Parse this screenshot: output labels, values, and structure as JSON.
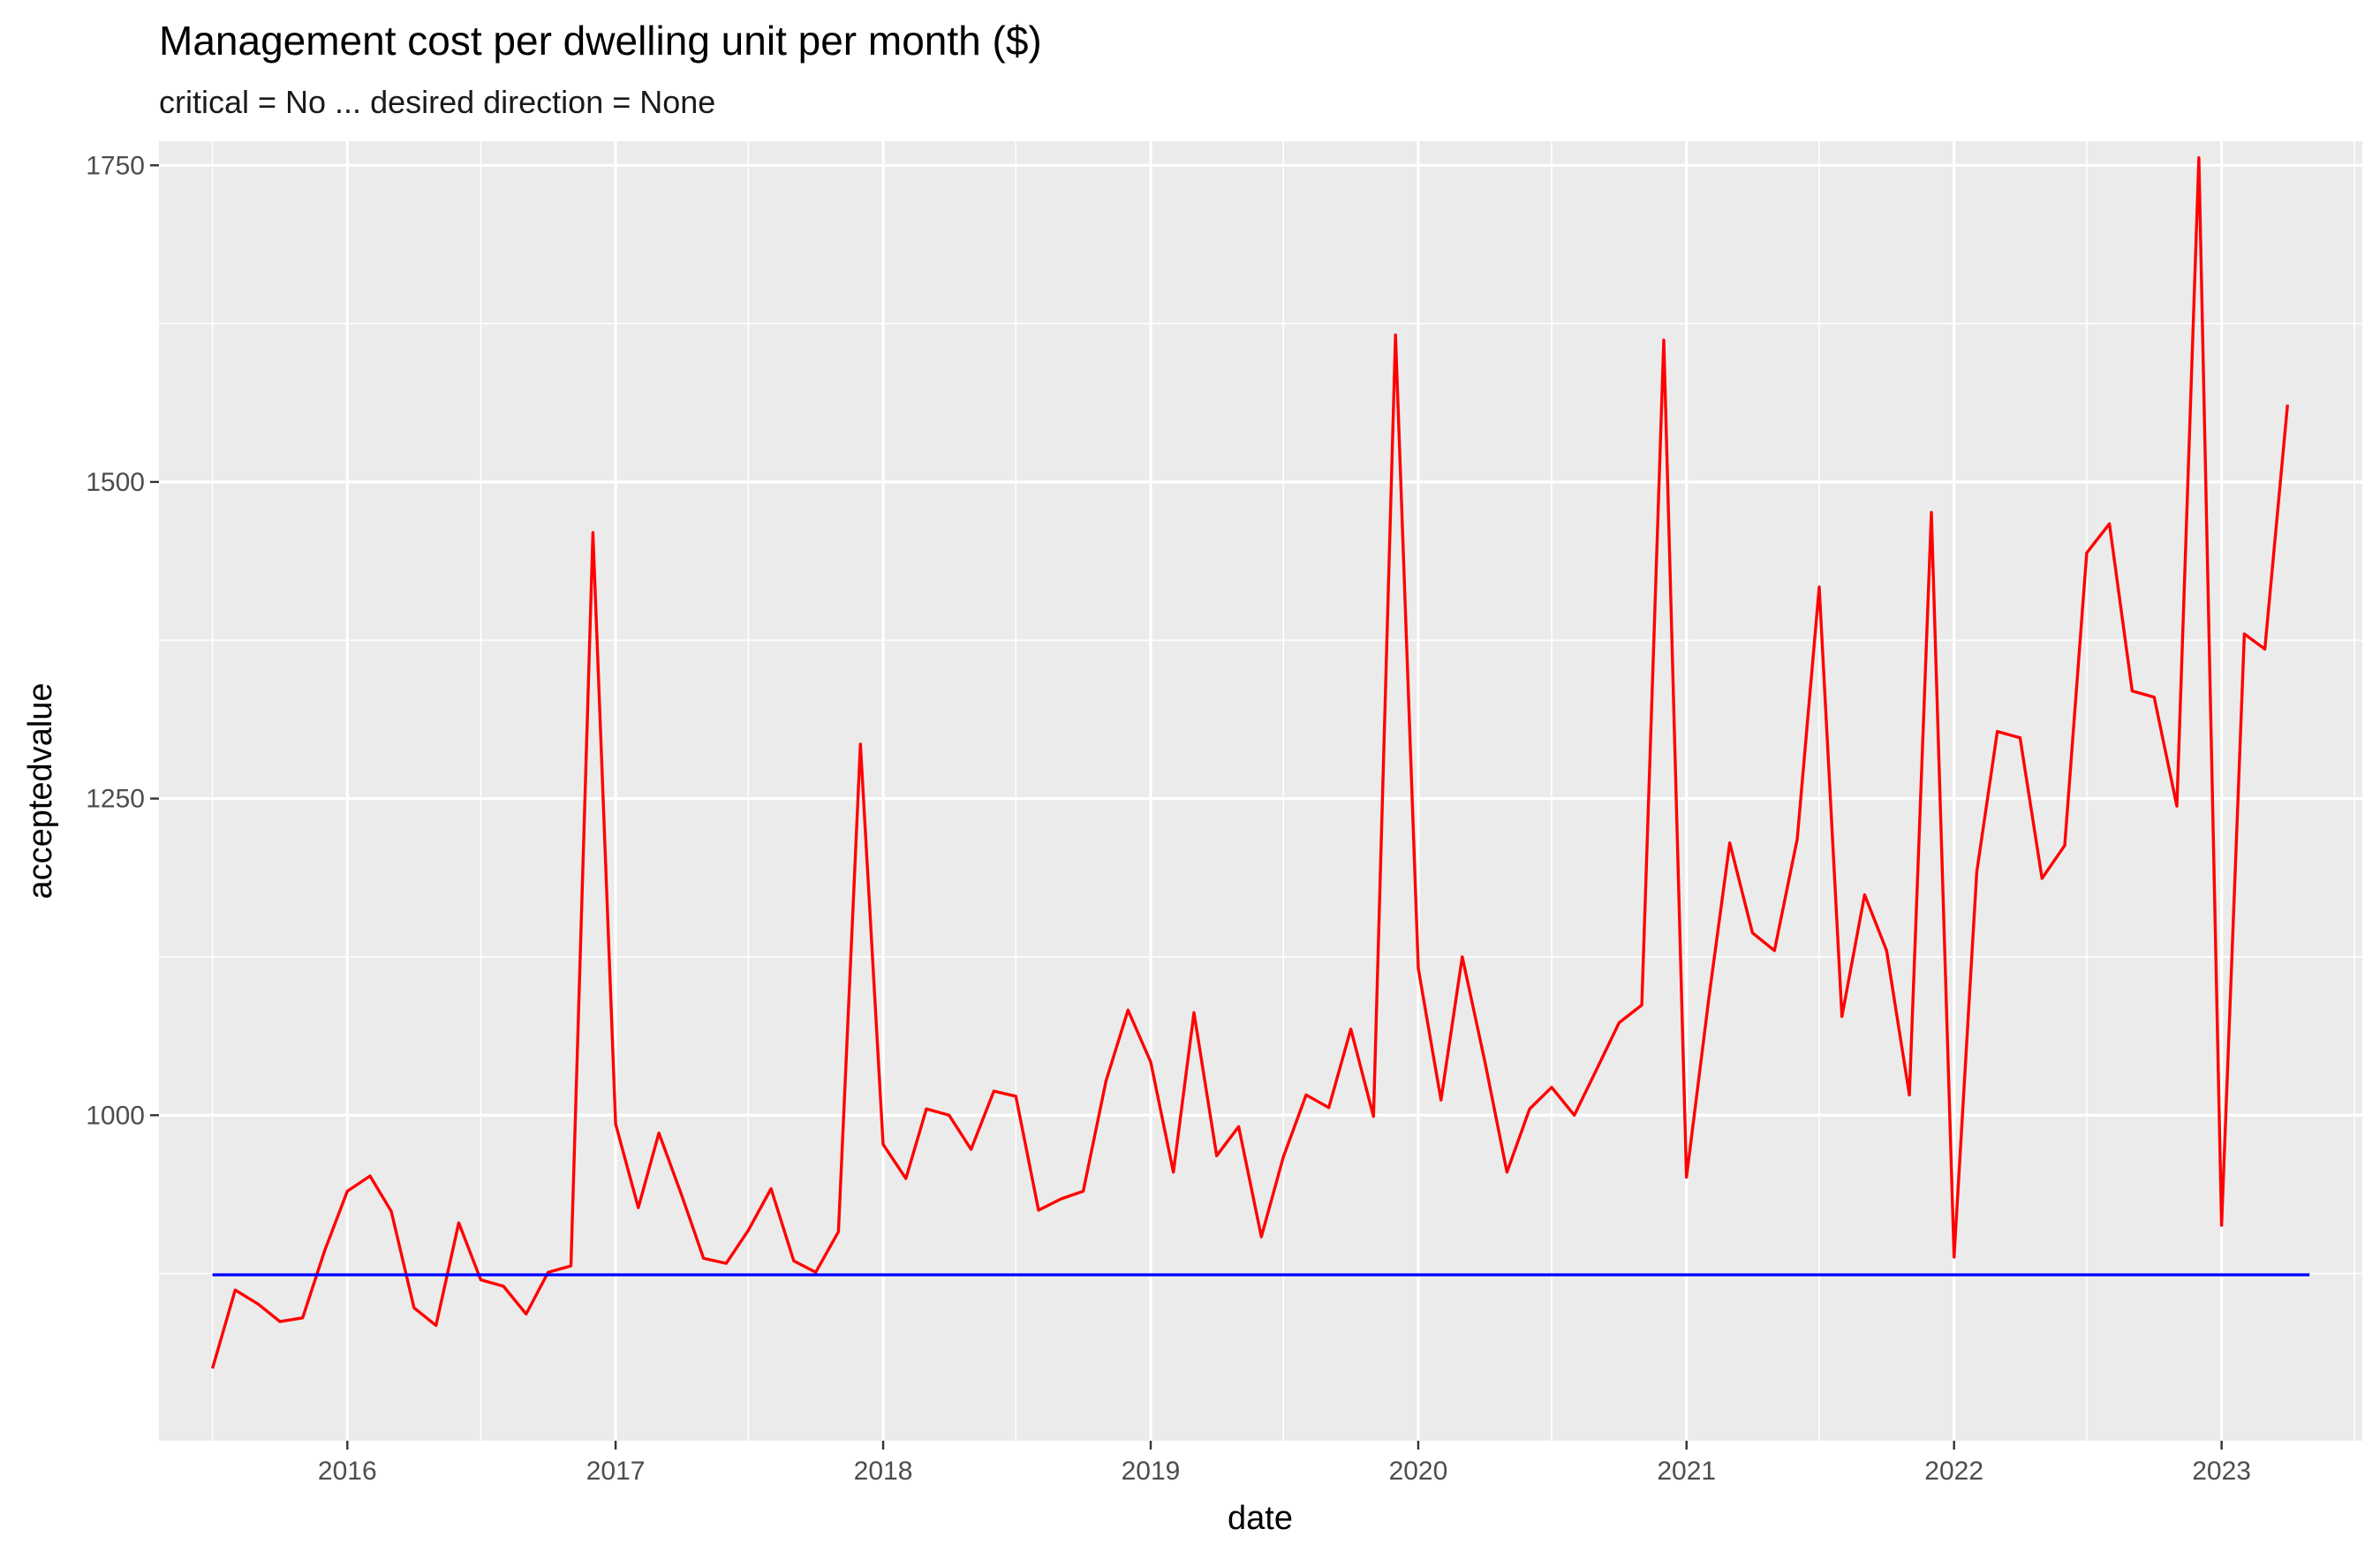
{
  "chart_data": {
    "type": "line",
    "title": "Management cost per dwelling unit per month ($)",
    "subtitle": "critical = No ... desired direction = None",
    "xlabel": "date",
    "ylabel": "acceptedvalue",
    "xlim": [
      "2015-04-19",
      "2023-07-12"
    ],
    "ylim": [
      743,
      1769
    ],
    "x_ticks": [
      "2016",
      "2017",
      "2018",
      "2019",
      "2020",
      "2021",
      "2022",
      "2023"
    ],
    "y_ticks": [
      "1000",
      "1250",
      "1500",
      "1750"
    ],
    "grid": true,
    "legend": "none",
    "series": [
      {
        "color": "#ff0000",
        "x": [
          "2015-07-01",
          "2015-08-01",
          "2015-09-01",
          "2015-10-01",
          "2015-11-01",
          "2015-12-01",
          "2016-01-01",
          "2016-02-01",
          "2016-03-01",
          "2016-04-01",
          "2016-05-01",
          "2016-06-01",
          "2016-07-01",
          "2016-08-01",
          "2016-09-01",
          "2016-10-01",
          "2016-11-01",
          "2016-12-01",
          "2017-01-01",
          "2017-02-01",
          "2017-03-01",
          "2017-04-01",
          "2017-05-01",
          "2017-06-01",
          "2017-07-01",
          "2017-08-01",
          "2017-09-01",
          "2017-10-01",
          "2017-11-01",
          "2017-12-01",
          "2018-01-01",
          "2018-02-01",
          "2018-03-01",
          "2018-04-01",
          "2018-05-01",
          "2018-06-01",
          "2018-07-01",
          "2018-08-01",
          "2018-09-01",
          "2018-10-01",
          "2018-11-01",
          "2018-12-01",
          "2019-01-01",
          "2019-02-01",
          "2019-03-01",
          "2019-04-01",
          "2019-05-01",
          "2019-06-01",
          "2019-07-01",
          "2019-08-01",
          "2019-09-01",
          "2019-10-01",
          "2019-11-01",
          "2019-12-01",
          "2020-01-01",
          "2020-02-01",
          "2020-03-01",
          "2020-04-01",
          "2020-05-01",
          "2020-06-01",
          "2020-07-01",
          "2020-08-01",
          "2020-09-01",
          "2020-10-01",
          "2020-11-01",
          "2020-12-01",
          "2021-01-01",
          "2021-02-01",
          "2021-03-01",
          "2021-04-01",
          "2021-05-01",
          "2021-06-01",
          "2021-07-01",
          "2021-08-01",
          "2021-09-01",
          "2021-10-01",
          "2021-11-01",
          "2021-12-01",
          "2022-01-01",
          "2022-02-01",
          "2022-03-01",
          "2022-04-01",
          "2022-05-01",
          "2022-06-01",
          "2022-07-01",
          "2022-08-01",
          "2022-09-01",
          "2022-10-01",
          "2022-11-01",
          "2022-12-01",
          "2023-01-01",
          "2023-02-01",
          "2023-03-01",
          "2023-04-01"
        ],
        "values": [
          800,
          862,
          851,
          837,
          840,
          893,
          940,
          952,
          924,
          848,
          834,
          915,
          870,
          865,
          843,
          876,
          881,
          1460,
          993,
          927,
          986,
          937,
          887,
          883,
          909,
          942,
          885,
          876,
          908,
          1293,
          977,
          950,
          1005,
          1000,
          973,
          1019,
          1015,
          925,
          934,
          940,
          1027,
          1083,
          1042,
          955,
          1081,
          968,
          991,
          904,
          967,
          1016,
          1006,
          1068,
          999,
          1616,
          1116,
          1012,
          1125,
          1042,
          955,
          1005,
          1022,
          1000,
          1037,
          1073,
          1087,
          1612,
          951,
          1095,
          1215,
          1144,
          1130,
          1218,
          1417,
          1078,
          1174,
          1130,
          1016,
          1476,
          888,
          1192,
          1303,
          1298,
          1187,
          1213,
          1444,
          1467,
          1335,
          1330,
          1244,
          1756,
          913,
          1380,
          1368,
          1561
        ]
      },
      {
        "color": "#0000ff",
        "x": [
          "2015-07-01",
          "2023-05-01"
        ],
        "values": [
          874,
          874
        ]
      }
    ]
  }
}
